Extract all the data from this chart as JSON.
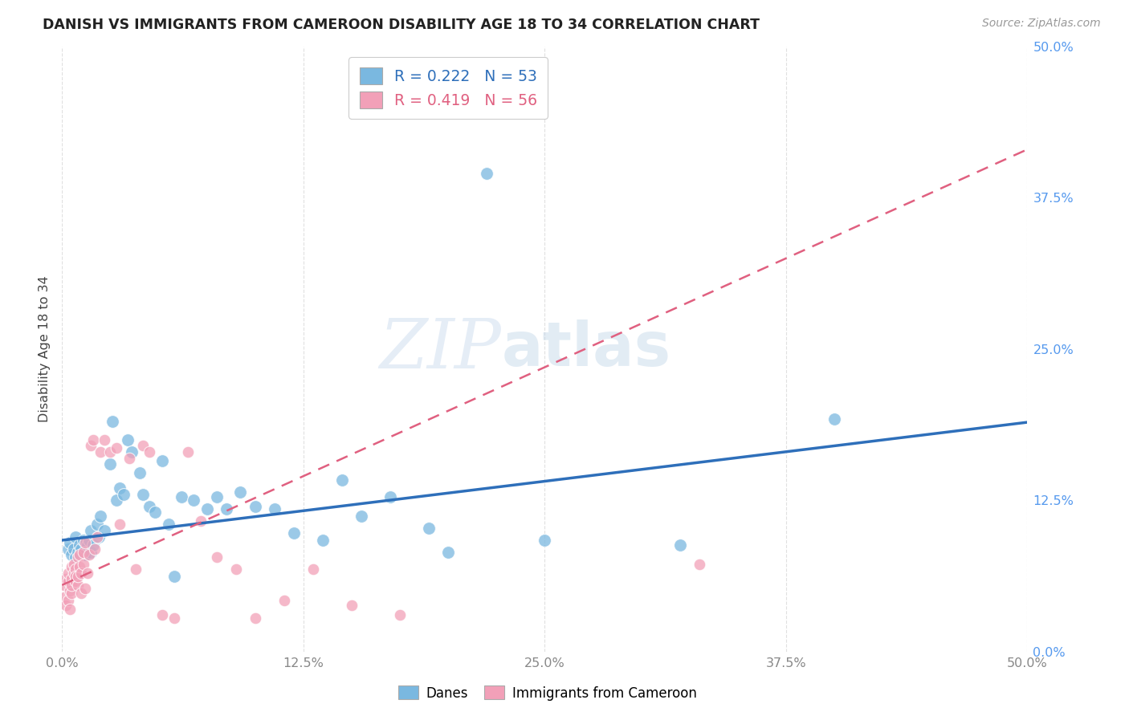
{
  "title": "DANISH VS IMMIGRANTS FROM CAMEROON DISABILITY AGE 18 TO 34 CORRELATION CHART",
  "source": "Source: ZipAtlas.com",
  "ylabel": "Disability Age 18 to 34",
  "xlim": [
    0.0,
    0.5
  ],
  "ylim": [
    0.0,
    0.5
  ],
  "xtick_vals": [
    0.0,
    0.125,
    0.25,
    0.375,
    0.5
  ],
  "xtick_labels": [
    "0.0%",
    "12.5%",
    "25.0%",
    "37.5%",
    "50.0%"
  ],
  "ytick_vals": [
    0.0,
    0.125,
    0.25,
    0.375,
    0.5
  ],
  "ytick_labels": [
    "0.0%",
    "12.5%",
    "25.0%",
    "37.5%",
    "50.0%"
  ],
  "danes_color": "#7ab8e0",
  "cameroon_color": "#f2a0b8",
  "danes_line_color": "#2e6fba",
  "cameroon_line_color": "#e06080",
  "danes_R": 0.222,
  "danes_N": 53,
  "cameroon_R": 0.419,
  "cameroon_N": 56,
  "danes_x": [
    0.003,
    0.004,
    0.005,
    0.006,
    0.007,
    0.007,
    0.008,
    0.009,
    0.01,
    0.011,
    0.012,
    0.013,
    0.014,
    0.015,
    0.015,
    0.016,
    0.018,
    0.019,
    0.02,
    0.022,
    0.025,
    0.026,
    0.028,
    0.03,
    0.032,
    0.034,
    0.036,
    0.04,
    0.042,
    0.045,
    0.048,
    0.052,
    0.055,
    0.058,
    0.062,
    0.068,
    0.075,
    0.08,
    0.085,
    0.092,
    0.1,
    0.11,
    0.12,
    0.135,
    0.145,
    0.155,
    0.17,
    0.19,
    0.2,
    0.22,
    0.25,
    0.32,
    0.4
  ],
  "danes_y": [
    0.085,
    0.09,
    0.08,
    0.085,
    0.095,
    0.078,
    0.082,
    0.088,
    0.085,
    0.092,
    0.08,
    0.088,
    0.092,
    0.1,
    0.082,
    0.088,
    0.105,
    0.095,
    0.112,
    0.1,
    0.155,
    0.19,
    0.125,
    0.135,
    0.13,
    0.175,
    0.165,
    0.148,
    0.13,
    0.12,
    0.115,
    0.158,
    0.105,
    0.062,
    0.128,
    0.125,
    0.118,
    0.128,
    0.118,
    0.132,
    0.12,
    0.118,
    0.098,
    0.092,
    0.142,
    0.112,
    0.128,
    0.102,
    0.082,
    0.395,
    0.092,
    0.088,
    0.192
  ],
  "cameroon_x": [
    0.001,
    0.001,
    0.002,
    0.002,
    0.003,
    0.003,
    0.003,
    0.004,
    0.004,
    0.005,
    0.005,
    0.005,
    0.005,
    0.006,
    0.006,
    0.007,
    0.007,
    0.007,
    0.008,
    0.008,
    0.008,
    0.009,
    0.009,
    0.01,
    0.01,
    0.011,
    0.011,
    0.012,
    0.012,
    0.013,
    0.014,
    0.015,
    0.016,
    0.017,
    0.018,
    0.02,
    0.022,
    0.025,
    0.028,
    0.03,
    0.035,
    0.038,
    0.042,
    0.045,
    0.052,
    0.058,
    0.065,
    0.072,
    0.08,
    0.09,
    0.1,
    0.115,
    0.13,
    0.15,
    0.175,
    0.33
  ],
  "cameroon_y": [
    0.045,
    0.055,
    0.038,
    0.06,
    0.042,
    0.058,
    0.065,
    0.035,
    0.05,
    0.06,
    0.048,
    0.07,
    0.055,
    0.065,
    0.072,
    0.068,
    0.058,
    0.062,
    0.055,
    0.078,
    0.062,
    0.07,
    0.08,
    0.048,
    0.065,
    0.082,
    0.072,
    0.052,
    0.09,
    0.065,
    0.08,
    0.17,
    0.175,
    0.085,
    0.095,
    0.165,
    0.175,
    0.165,
    0.168,
    0.105,
    0.16,
    0.068,
    0.17,
    0.165,
    0.03,
    0.028,
    0.165,
    0.108,
    0.078,
    0.068,
    0.028,
    0.042,
    0.068,
    0.038,
    0.03,
    0.072
  ],
  "watermark_zip": "ZIP",
  "watermark_atlas": "atlas",
  "background_color": "#ffffff",
  "grid_color": "#e0e0e0",
  "tick_color": "#888888",
  "right_tick_color": "#5599ee"
}
